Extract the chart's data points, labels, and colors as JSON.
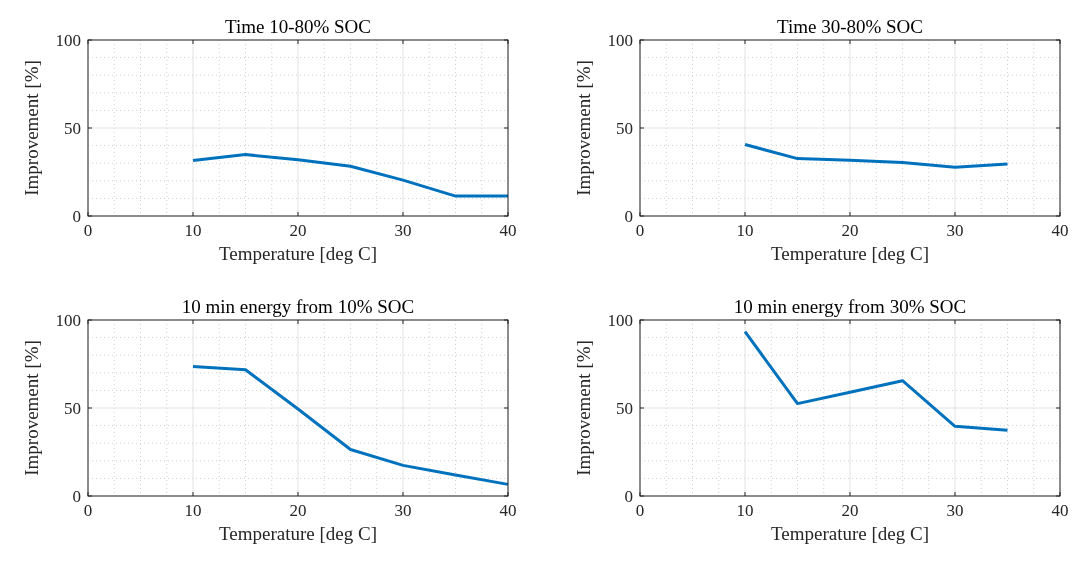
{
  "chart_data": [
    {
      "type": "line",
      "title": "Time 10-80% SOC",
      "xlabel": "Temperature [deg C]",
      "ylabel": "Improvement [%]",
      "x": [
        10,
        15,
        20,
        25,
        30,
        35,
        40
      ],
      "series": [
        {
          "color": "#0072bd",
          "values": [
            31.5,
            34.9,
            31.9,
            28.3,
            20.4,
            11.3,
            11.3
          ]
        }
      ],
      "xlim": [
        0,
        40
      ],
      "xticks": [
        0,
        10,
        20,
        30,
        40
      ],
      "ylim": [
        0,
        100
      ],
      "yticks": [
        0,
        50,
        100
      ],
      "grid": true
    },
    {
      "type": "line",
      "title": "Time 30-80% SOC",
      "xlabel": "Temperature [deg C]",
      "ylabel": "Improvement [%]",
      "x": [
        10,
        15,
        20,
        25,
        30,
        35
      ],
      "series": [
        {
          "color": "#0072bd",
          "values": [
            40.6,
            32.6,
            31.7,
            30.4,
            27.7,
            29.6
          ]
        }
      ],
      "xlim": [
        0,
        40
      ],
      "xticks": [
        0,
        10,
        20,
        30,
        40
      ],
      "ylim": [
        0,
        100
      ],
      "yticks": [
        0,
        50,
        100
      ],
      "grid": true
    },
    {
      "type": "line",
      "title": "10 min energy from 10% SOC",
      "xlabel": "Temperature [deg C]",
      "ylabel": "Improvement [%]",
      "x": [
        10,
        15,
        20,
        25,
        30,
        35,
        40
      ],
      "series": [
        {
          "color": "#0072bd",
          "values": [
            73.6,
            71.7,
            49.4,
            26.4,
            17.4,
            11.9,
            6.6
          ]
        }
      ],
      "xlim": [
        0,
        40
      ],
      "xticks": [
        0,
        10,
        20,
        30,
        40
      ],
      "ylim": [
        0,
        100
      ],
      "yticks": [
        0,
        50,
        100
      ],
      "grid": true
    },
    {
      "type": "line",
      "title": "10 min energy from 30% SOC",
      "xlabel": "Temperature [deg C]",
      "ylabel": "Improvement [%]",
      "x": [
        10,
        15,
        20,
        25,
        30,
        35
      ],
      "series": [
        {
          "color": "#0072bd",
          "values": [
            93.4,
            52.5,
            58.9,
            65.5,
            39.6,
            37.4
          ]
        }
      ],
      "xlim": [
        0,
        40
      ],
      "xticks": [
        0,
        10,
        20,
        30,
        40
      ],
      "ylim": [
        0,
        100
      ],
      "yticks": [
        0,
        50,
        100
      ],
      "grid": true
    }
  ]
}
